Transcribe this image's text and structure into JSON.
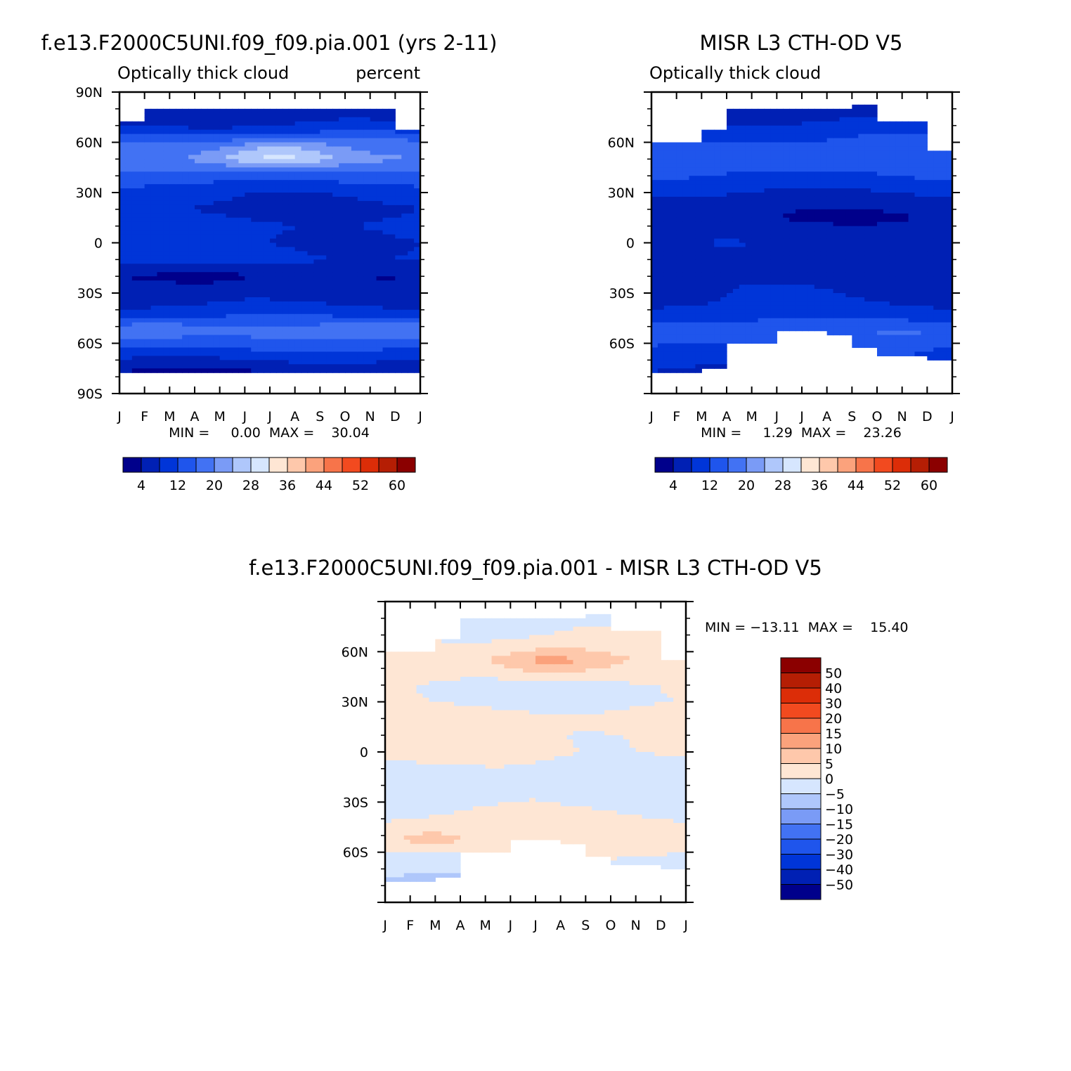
{
  "chart_data": [
    {
      "type": "heatmap",
      "title": "f.e13.F2000C5UNI.f09_f09.pia.001 (yrs 2-11)",
      "left_subtitle": "Optically thick cloud",
      "right_subtitle": "percent",
      "x_tick_labels": [
        "J",
        "F",
        "M",
        "A",
        "M",
        "J",
        "J",
        "A",
        "S",
        "O",
        "N",
        "D",
        "J"
      ],
      "y_tick_labels": [
        "90N",
        "60N",
        "30N",
        "0",
        "30S",
        "60S",
        "90S"
      ],
      "y_tick_values": [
        90,
        60,
        30,
        0,
        -30,
        -60,
        -90
      ],
      "ylim": [
        -90,
        90
      ],
      "stats_text": "MIN =     0.00  MAX =    30.04",
      "min": 0.0,
      "max": 30.04,
      "data_lat_range": [
        -77,
        80
      ],
      "colorbar_labels": [
        "4",
        "12",
        "20",
        "28",
        "36",
        "44",
        "52",
        "60"
      ],
      "colorbar_colors": [
        "#00008b",
        "#0020b4",
        "#0035d8",
        "#1f55ec",
        "#4272f3",
        "#7a9bf6",
        "#afc7fb",
        "#d6e6fe",
        "#fee6d4",
        "#fec8ab",
        "#fba27c",
        "#f7744a",
        "#f24a1f",
        "#dc2d08",
        "#b51e04",
        "#8b0000"
      ],
      "lat_profile": [
        [
          -77,
          4
        ],
        [
          -70,
          8
        ],
        [
          -60,
          14
        ],
        [
          -52,
          17
        ],
        [
          -45,
          12
        ],
        [
          -35,
          7
        ],
        [
          -27,
          6
        ],
        [
          -20,
          5
        ],
        [
          -10,
          9
        ],
        [
          0,
          8
        ],
        [
          10,
          9
        ],
        [
          20,
          7
        ],
        [
          30,
          9
        ],
        [
          40,
          14
        ],
        [
          50,
          19
        ],
        [
          60,
          16
        ],
        [
          70,
          8
        ],
        [
          80,
          5
        ]
      ],
      "features": [
        {
          "lat": 52,
          "month": 6.2,
          "amp": 11,
          "sigma_lat": 6,
          "sigma_month": 1.8
        },
        {
          "lat": -20,
          "month": 3.5,
          "amp": -4,
          "sigma_lat": 4,
          "sigma_month": 1.5
        },
        {
          "lat": -52,
          "month": 1.2,
          "amp": 4,
          "sigma_lat": 4,
          "sigma_month": 1.5
        },
        {
          "lat": -52,
          "month": 11,
          "amp": 4,
          "sigma_lat": 4,
          "sigma_month": 1.5
        }
      ],
      "cover_top": [
        72,
        80,
        80,
        80,
        80,
        80,
        80,
        80,
        80,
        80,
        80,
        67,
        67
      ]
    },
    {
      "type": "heatmap",
      "title": "MISR L3 CTH-OD V5",
      "left_subtitle": "Optically thick cloud",
      "x_tick_labels": [
        "J",
        "F",
        "M",
        "A",
        "M",
        "J",
        "J",
        "A",
        "S",
        "O",
        "N",
        "D",
        "J"
      ],
      "y_tick_labels": [
        "60N",
        "30N",
        "0",
        "30S",
        "60S"
      ],
      "y_tick_values": [
        60,
        30,
        0,
        -30,
        -60
      ],
      "ylim": [
        -90,
        90
      ],
      "stats_text": "MIN =     1.29  MAX =    23.26",
      "min": 1.29,
      "max": 23.26,
      "colorbar_labels": [
        "4",
        "12",
        "20",
        "28",
        "36",
        "44",
        "52",
        "60"
      ],
      "colorbar_colors": [
        "#00008b",
        "#0020b4",
        "#0035d8",
        "#1f55ec",
        "#4272f3",
        "#7a9bf6",
        "#afc7fb",
        "#d6e6fe",
        "#fee6d4",
        "#fec8ab",
        "#fba27c",
        "#f7744a",
        "#f24a1f",
        "#dc2d08",
        "#b51e04",
        "#8b0000"
      ],
      "lat_profile": [
        [
          -77,
          8
        ],
        [
          -65,
          12
        ],
        [
          -55,
          14
        ],
        [
          -45,
          11
        ],
        [
          -35,
          8
        ],
        [
          -25,
          7
        ],
        [
          -18,
          5
        ],
        [
          -10,
          6
        ],
        [
          0,
          7
        ],
        [
          8,
          6
        ],
        [
          15,
          4
        ],
        [
          25,
          6
        ],
        [
          35,
          10
        ],
        [
          45,
          13
        ],
        [
          55,
          14
        ],
        [
          65,
          11
        ],
        [
          72,
          8
        ],
        [
          80,
          5
        ]
      ],
      "features": [
        {
          "lat": 50,
          "month": 5.2,
          "amp": 3,
          "sigma_lat": 5,
          "sigma_month": 1.5
        },
        {
          "lat": -52,
          "month": 1.2,
          "amp": 3,
          "sigma_lat": 4,
          "sigma_month": 1.5
        },
        {
          "lat": -52,
          "month": 10.5,
          "amp": 3,
          "sigma_lat": 4,
          "sigma_month": 1.5
        }
      ],
      "cover_top": [
        60,
        60,
        68,
        80,
        80,
        80,
        80,
        80,
        82,
        73,
        73,
        56,
        56
      ],
      "cover_bottom": [
        -77,
        -77,
        -75,
        -60,
        -60,
        -52,
        -52,
        -55,
        -63,
        -68,
        -68,
        -70,
        -70
      ]
    },
    {
      "type": "heatmap",
      "title": "f.e13.F2000C5UNI.f09_f09.pia.001 - MISR L3 CTH-OD V5",
      "x_tick_labels": [
        "J",
        "F",
        "M",
        "A",
        "M",
        "J",
        "J",
        "A",
        "S",
        "O",
        "N",
        "D",
        "J"
      ],
      "y_tick_labels": [
        "60N",
        "30N",
        "0",
        "30S",
        "60S"
      ],
      "y_tick_values": [
        60,
        30,
        0,
        -30,
        -60
      ],
      "ylim": [
        -90,
        90
      ],
      "stats_text": "MIN = −13.11  MAX =    15.40",
      "min": -13.11,
      "max": 15.4,
      "colorbar_labels": [
        "50",
        "40",
        "30",
        "20",
        "15",
        "10",
        "5",
        "0",
        "−5",
        "−10",
        "−15",
        "−20",
        "−30",
        "−40",
        "−50"
      ],
      "colorbar_colors_top_to_bottom": [
        "#8b0000",
        "#b51e04",
        "#dc2d08",
        "#f24a1f",
        "#f7744a",
        "#fba27c",
        "#fec8ab",
        "#fee6d4",
        "#d6e6fe",
        "#afc7fb",
        "#7a9bf6",
        "#4272f3",
        "#1f55ec",
        "#0035d8",
        "#0020b4",
        "#00008b"
      ],
      "lat_profile": [
        [
          -77,
          -5
        ],
        [
          -68,
          -3
        ],
        [
          -60,
          1
        ],
        [
          -50,
          2
        ],
        [
          -40,
          1
        ],
        [
          -30,
          -1
        ],
        [
          -20,
          -1
        ],
        [
          -10,
          -1
        ],
        [
          0,
          1
        ],
        [
          10,
          1
        ],
        [
          20,
          2
        ],
        [
          30,
          -1
        ],
        [
          40,
          -1
        ],
        [
          55,
          3
        ],
        [
          65,
          1
        ],
        [
          75,
          -1
        ],
        [
          80,
          -2
        ]
      ],
      "features": [
        {
          "lat": 54,
          "month": 6.5,
          "amp": 9,
          "sigma_lat": 6,
          "sigma_month": 1.6
        },
        {
          "lat": -52,
          "month": 1.8,
          "amp": 6,
          "sigma_lat": 4,
          "sigma_month": 1.2
        },
        {
          "lat": -20,
          "month": 2.5,
          "amp": -2.5,
          "sigma_lat": 7,
          "sigma_month": 1.6
        }
      ],
      "cover_top": [
        60,
        60,
        68,
        80,
        80,
        80,
        80,
        80,
        82,
        73,
        73,
        56,
        56
      ],
      "cover_bottom": [
        -77,
        -77,
        -75,
        -60,
        -60,
        -52,
        -52,
        -55,
        -63,
        -68,
        -68,
        -70,
        -70
      ]
    }
  ]
}
